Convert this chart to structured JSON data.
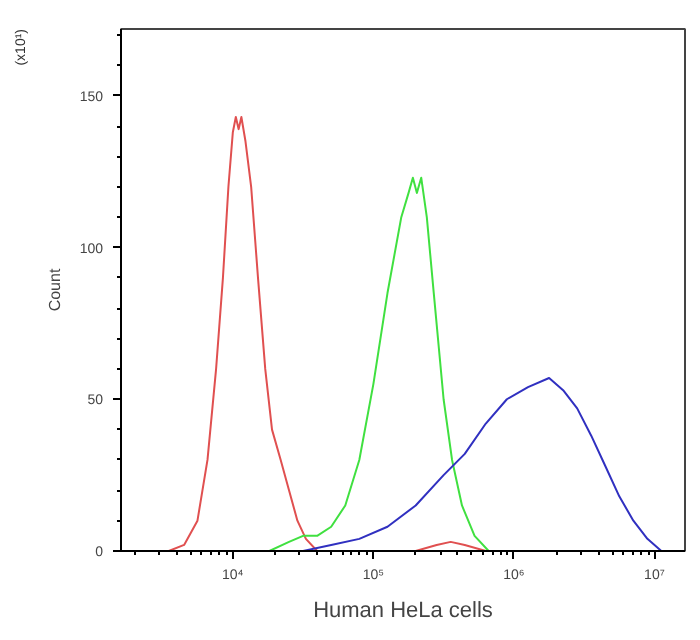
{
  "chart_data": {
    "type": "line",
    "xlabel": "Human HeLa cells",
    "ylabel": "Count",
    "annotations": [
      "(x10¹)"
    ],
    "log": "x",
    "grid": false,
    "marker": "none",
    "xlim": [
      1600,
      16500000
    ],
    "xticks": [
      {
        "value": 10000,
        "label": "10⁴"
      },
      {
        "value": 100000,
        "label": "10⁵"
      },
      {
        "value": 1000000,
        "label": "10⁶"
      },
      {
        "value": 10000000,
        "label": "10⁷"
      }
    ],
    "ylim": [
      0,
      172
    ],
    "yticks": [
      0,
      50,
      100,
      150
    ],
    "series": [
      {
        "color": "#e05050",
        "x": [
          3500,
          4500,
          5600,
          6600,
          7600,
          8500,
          9300,
          10000,
          10500,
          11000,
          11500,
          12300,
          13500,
          15100,
          17000,
          19000,
          21900,
          25100,
          28800,
          33100,
          39800,
          200000,
          282000,
          355000,
          447000,
          631000
        ],
        "values": [
          0,
          2,
          10,
          30,
          60,
          90,
          120,
          138,
          143,
          139,
          143,
          135,
          120,
          90,
          60,
          40,
          30,
          20,
          10,
          4,
          0,
          0,
          2,
          3,
          2,
          0
        ]
      },
      {
        "color": "#40e040",
        "x": [
          18200,
          25100,
          31600,
          39800,
          50100,
          63100,
          79400,
          100000,
          126000,
          158000,
          178000,
          191000,
          204000,
          219000,
          240000,
          269000,
          316000,
          363000,
          427000,
          525000,
          661000
        ],
        "values": [
          0,
          3,
          5,
          5,
          8,
          15,
          30,
          55,
          85,
          110,
          118,
          123,
          118,
          123,
          110,
          85,
          50,
          30,
          15,
          5,
          0
        ]
      },
      {
        "color": "#3030c0",
        "x": [
          31600,
          50100,
          79400,
          126000,
          200000,
          316000,
          447000,
          631000,
          891000,
          1260000,
          1780000,
          2240000,
          2820000,
          3550000,
          4470000,
          5620000,
          7080000,
          8910000,
          11200000
        ],
        "values": [
          0,
          2,
          4,
          8,
          15,
          25,
          32,
          42,
          50,
          54,
          57,
          53,
          47,
          38,
          28,
          18,
          10,
          4,
          0
        ]
      }
    ]
  }
}
